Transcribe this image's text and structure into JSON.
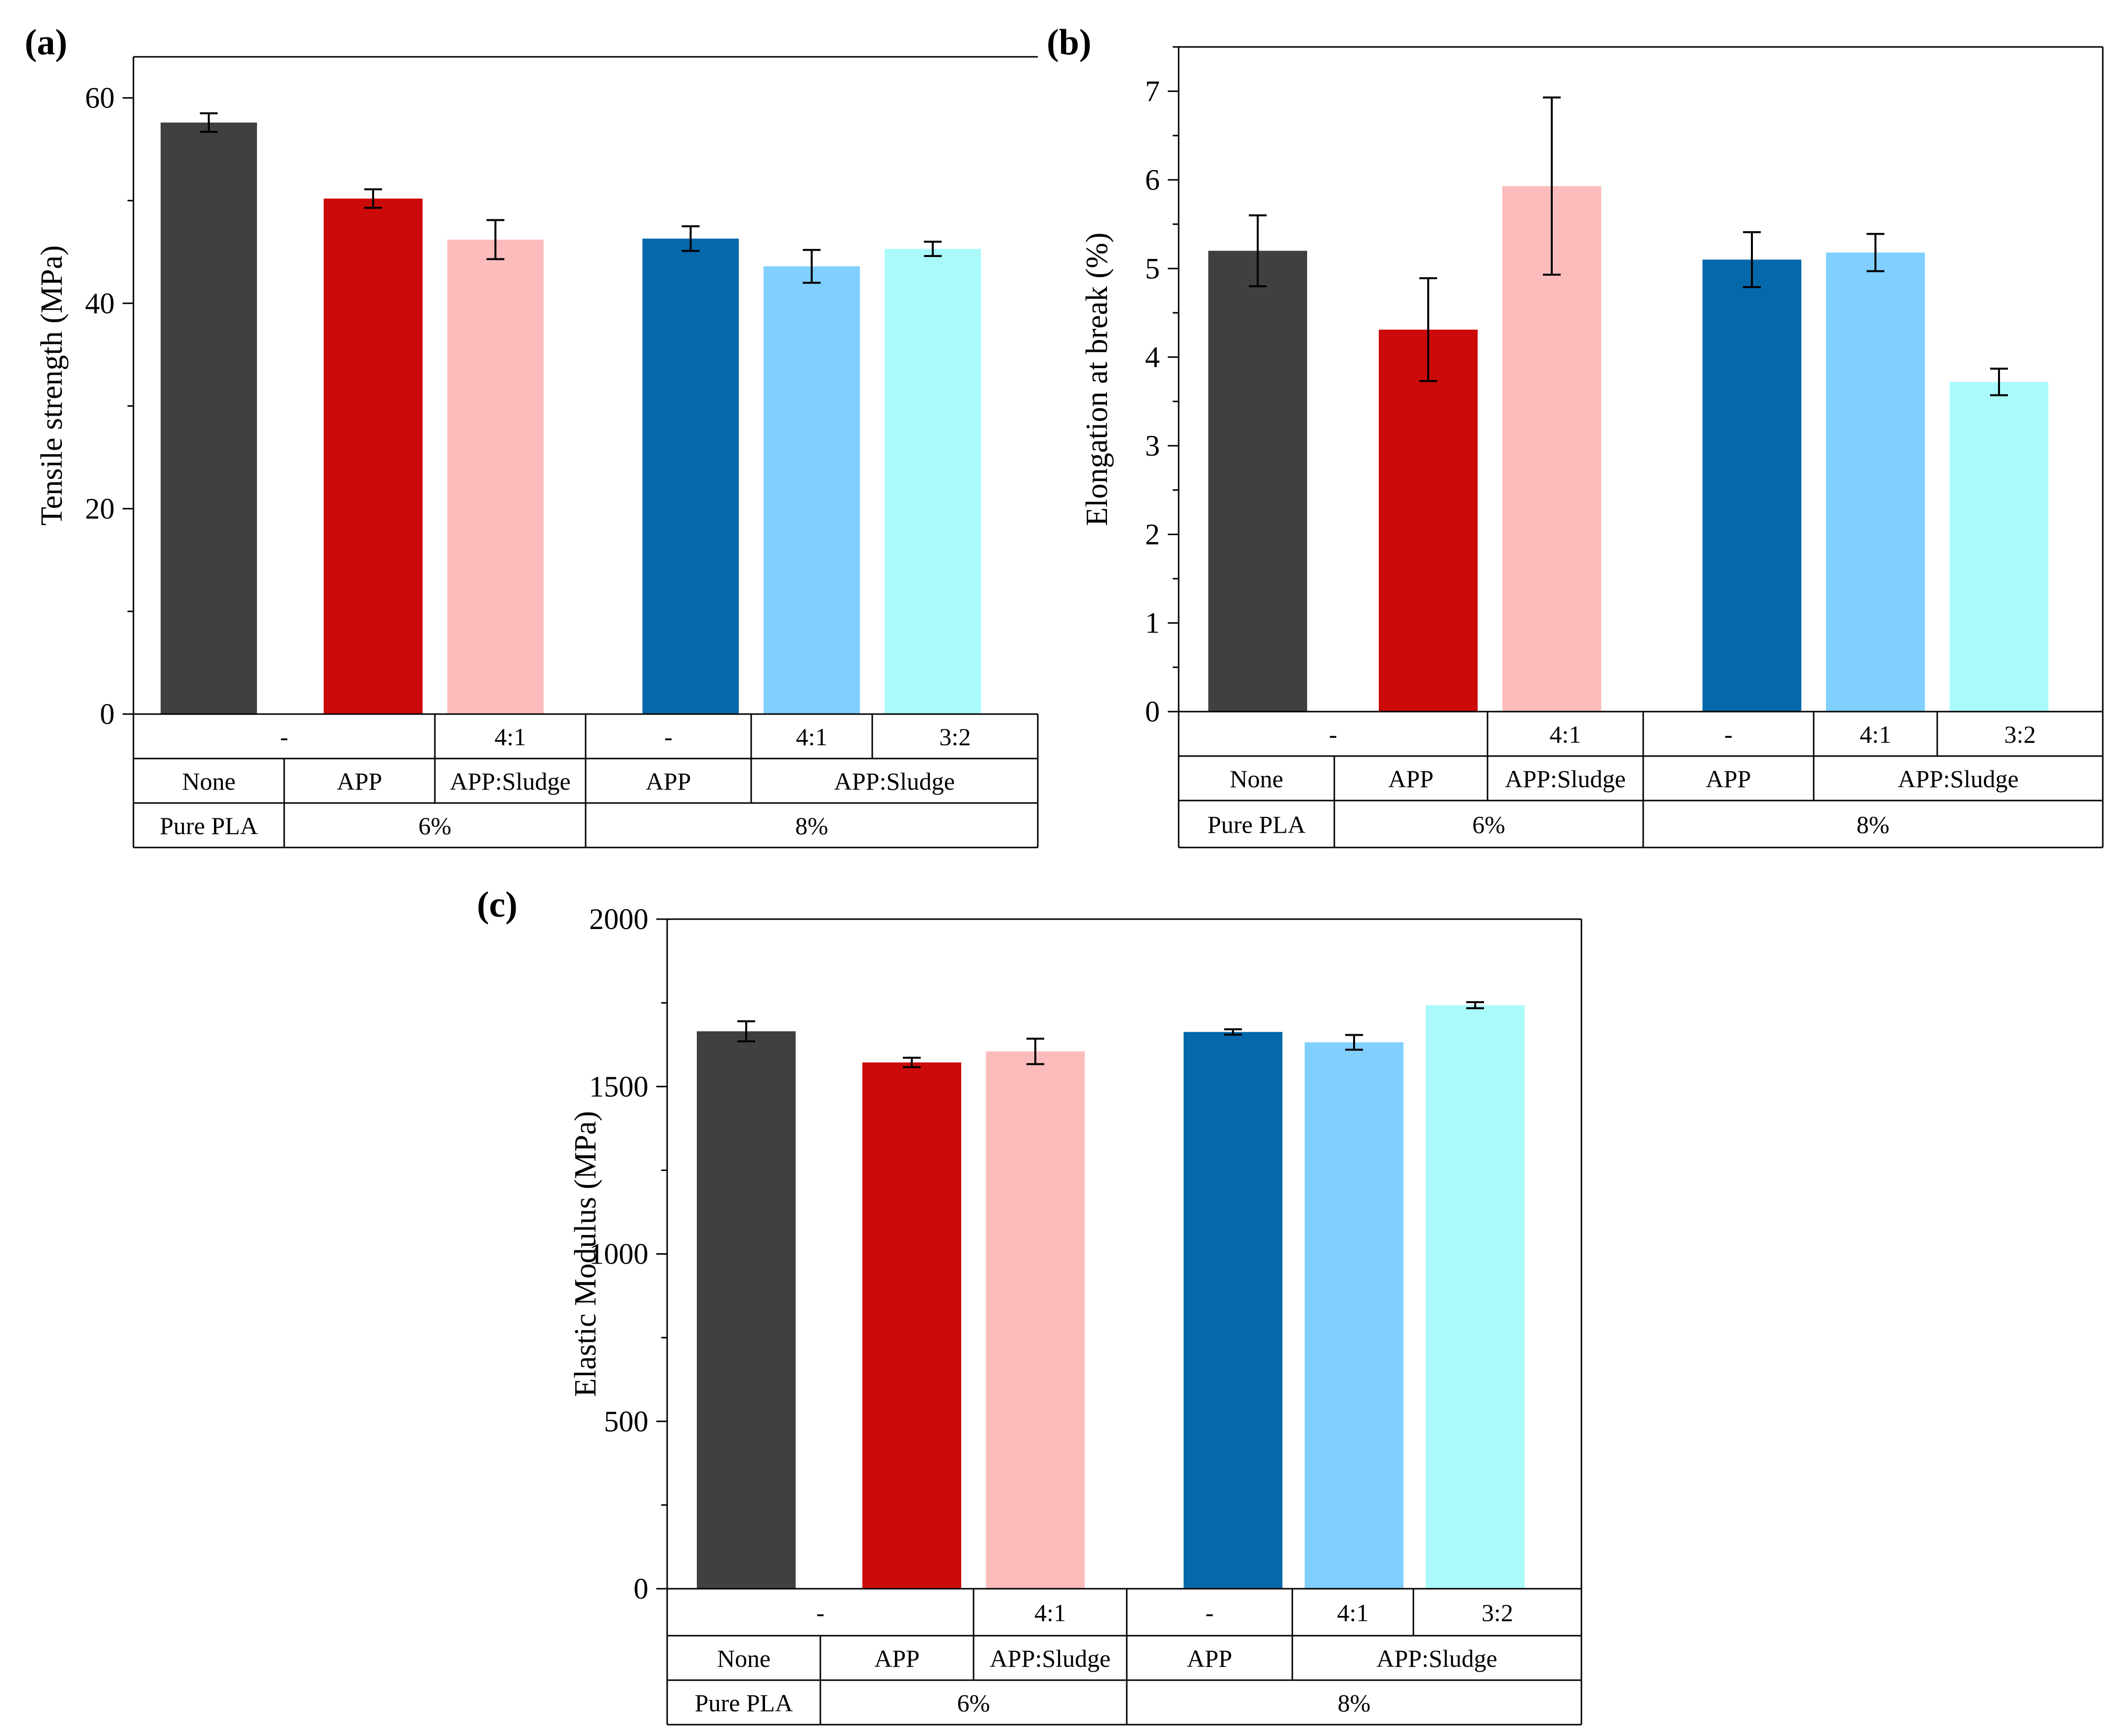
{
  "chart_data": [
    {
      "panel": "(a)",
      "type": "bar",
      "ylabel": "Tensile strength (MPa)",
      "ylim": [
        0,
        64
      ],
      "yticks": [
        0,
        20,
        40,
        60
      ],
      "categories": [
        "Pure PLA",
        "6% APP",
        "6% APP:Sludge 4:1",
        "8% APP",
        "8% APP:Sludge 4:1",
        "8% APP:Sludge 3:2"
      ],
      "values": [
        57.6,
        50.2,
        46.2,
        46.3,
        43.6,
        45.3
      ],
      "errors": [
        0.9,
        0.9,
        1.9,
        1.2,
        1.6,
        0.7
      ],
      "colors": [
        "#404040",
        "#cc0a0a",
        "#fcbcbc",
        "#0568aa",
        "#80cfff",
        "#aafafc"
      ]
    },
    {
      "panel": "(b)",
      "type": "bar",
      "ylabel": "Elongation at break (%)",
      "ylim": [
        0,
        7.5
      ],
      "yticks": [
        0,
        1,
        2,
        3,
        4,
        5,
        6,
        7
      ],
      "categories": [
        "Pure PLA",
        "6% APP",
        "6% APP:Sludge 4:1",
        "8% APP",
        "8% APP:Sludge 4:1",
        "8% APP:Sludge 3:2"
      ],
      "values": [
        5.2,
        4.31,
        5.93,
        5.1,
        5.18,
        3.72
      ],
      "errors": [
        0.4,
        0.58,
        1.0,
        0.31,
        0.21,
        0.15
      ],
      "colors": [
        "#404040",
        "#cc0a0a",
        "#fcbcbc",
        "#0568aa",
        "#80cfff",
        "#aafafc"
      ]
    },
    {
      "panel": "(c)",
      "type": "bar",
      "ylabel": "Elastic Modulus (MPa)",
      "ylim": [
        0,
        2000
      ],
      "yticks": [
        0,
        500,
        1000,
        1500,
        2000
      ],
      "categories": [
        "Pure PLA",
        "6% APP",
        "6% APP:Sludge 4:1",
        "8% APP",
        "8% APP:Sludge 4:1",
        "8% APP:Sludge 3:2"
      ],
      "values": [
        1665,
        1572,
        1605,
        1663,
        1632,
        1743
      ],
      "errors": [
        30,
        14,
        38,
        8,
        22,
        9
      ],
      "colors": [
        "#404040",
        "#cc0a0a",
        "#fcbcbc",
        "#0568aa",
        "#80cfff",
        "#aafafc"
      ]
    }
  ],
  "table": {
    "row1": [
      "-",
      "4:1",
      "-",
      "4:1",
      "3:2"
    ],
    "row2": [
      "None",
      "APP",
      "APP:Sludge",
      "APP",
      "APP:Sludge"
    ],
    "row3": [
      "Pure PLA",
      "6%",
      "8%"
    ]
  }
}
